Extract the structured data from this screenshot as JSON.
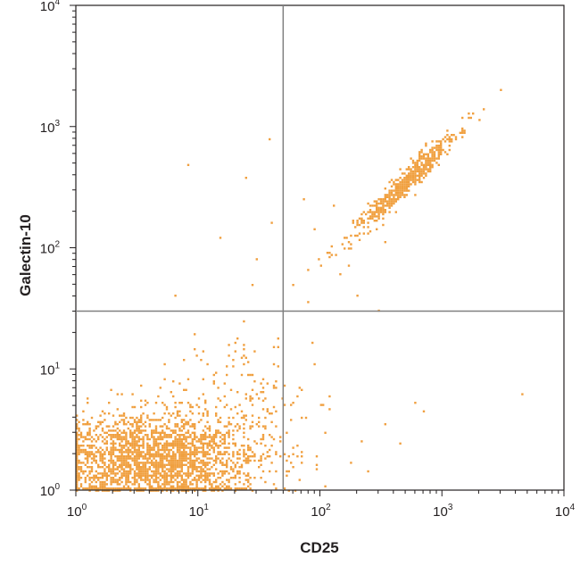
{
  "chart_data": {
    "type": "scatter",
    "plot_style": "flow cytometry density dot plot",
    "xlabel": "CD25",
    "ylabel": "Galectin-10",
    "x_scale": "log",
    "y_scale": "log",
    "xlim": [
      1,
      10000
    ],
    "ylim": [
      1,
      10000
    ],
    "x_ticks": [
      {
        "base": "10",
        "exp": "0",
        "value": 1
      },
      {
        "base": "10",
        "exp": "1",
        "value": 10
      },
      {
        "base": "10",
        "exp": "2",
        "value": 100
      },
      {
        "base": "10",
        "exp": "3",
        "value": 1000
      },
      {
        "base": "10",
        "exp": "4",
        "value": 10000
      }
    ],
    "y_ticks": [
      {
        "base": "10",
        "exp": "0",
        "value": 1
      },
      {
        "base": "10",
        "exp": "1",
        "value": 10
      },
      {
        "base": "10",
        "exp": "2",
        "value": 100
      },
      {
        "base": "10",
        "exp": "3",
        "value": 1000
      },
      {
        "base": "10",
        "exp": "4",
        "value": 10000
      }
    ],
    "quadrant_gate": {
      "x": 50,
      "y": 30
    },
    "grid": false,
    "point_color": "#f0a040",
    "populations": [
      {
        "x_center": 4.5,
        "y_center": 1.8,
        "x_spread_log": 0.42,
        "y_spread_log": 0.18,
        "count": 2600
      },
      {
        "x_center": 20,
        "y_center": 6,
        "x_spread_log": 0.35,
        "y_spread_log": 0.25,
        "count": 170
      },
      {
        "x_center": 500,
        "y_center": 340,
        "x_spread_log": 0.22,
        "y_spread_log": 0.22,
        "correlation": 0.97,
        "count": 650
      }
    ],
    "sparse_points": [
      [
        600,
        5.2
      ],
      [
        4500,
        6.2
      ],
      [
        8.5,
        480
      ],
      [
        6.5,
        40
      ],
      [
        38,
        780
      ],
      [
        25,
        380
      ],
      [
        40,
        160
      ],
      [
        15,
        120
      ],
      [
        30,
        80
      ],
      [
        28,
        50
      ],
      [
        60,
        50
      ],
      [
        90,
        140
      ],
      [
        130,
        220
      ],
      [
        170,
        70
      ],
      [
        300,
        30
      ],
      [
        150,
        60
      ],
      [
        80,
        35
      ],
      [
        70,
        4
      ],
      [
        110,
        3
      ],
      [
        220,
        2.5
      ],
      [
        350,
        3.5
      ],
      [
        250,
        1.4
      ],
      [
        180,
        1.7
      ],
      [
        450,
        2.4
      ],
      [
        95,
        1.6
      ],
      [
        120,
        6
      ],
      [
        60,
        2.2
      ],
      [
        42,
        15
      ],
      [
        45,
        18
      ],
      [
        75,
        250
      ],
      [
        200,
        40
      ],
      [
        250,
        130
      ],
      [
        180,
        100
      ],
      [
        100,
        80
      ],
      [
        350,
        110
      ],
      [
        700,
        4.5
      ]
    ]
  }
}
